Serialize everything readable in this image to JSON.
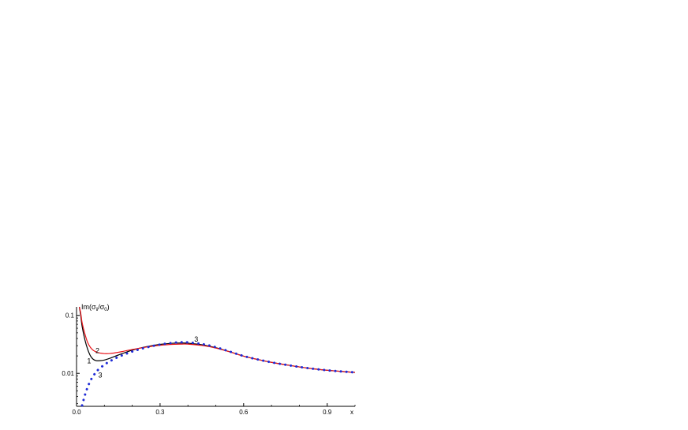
{
  "chart_data": {
    "type": "line",
    "title": "",
    "xlabel": "x",
    "ylabel": {
      "base": "Im(σ",
      "sub1": "ii",
      "mid": "/σ",
      "sub2": "0",
      "end": ")"
    },
    "x_scale": "linear",
    "y_scale": "log",
    "xlim": [
      0.0,
      1.0
    ],
    "ylim": [
      0.0027,
      0.14
    ],
    "x_ticks": [
      {
        "value": 0.0,
        "label": "0.0"
      },
      {
        "value": 0.3,
        "label": "0.3"
      },
      {
        "value": 0.6,
        "label": "0.6"
      },
      {
        "value": 0.9,
        "label": "0.9"
      }
    ],
    "y_ticks": [
      {
        "value": 0.1,
        "label": "0.1"
      },
      {
        "value": 0.01,
        "label": "0.01"
      }
    ],
    "grid": false,
    "legend": "none",
    "series": [
      {
        "id": "1",
        "style": "solid",
        "color": "#000000",
        "x": [
          0.01,
          0.015,
          0.02,
          0.03,
          0.04,
          0.05,
          0.06,
          0.07,
          0.08,
          0.1,
          0.12,
          0.15,
          0.2,
          0.25,
          0.3,
          0.35,
          0.38,
          0.4,
          0.45,
          0.5,
          0.55,
          0.6,
          0.65,
          0.7,
          0.75,
          0.8,
          0.85,
          0.9,
          0.95,
          1.0
        ],
        "y": [
          0.14,
          0.1,
          0.065,
          0.038,
          0.026,
          0.02,
          0.0175,
          0.0166,
          0.0165,
          0.017,
          0.0182,
          0.0207,
          0.0251,
          0.0288,
          0.0316,
          0.0332,
          0.0334,
          0.0331,
          0.0311,
          0.0277,
          0.0236,
          0.0198,
          0.0174,
          0.0155,
          0.0141,
          0.0129,
          0.012,
          0.0113,
          0.0108,
          0.0104
        ]
      },
      {
        "id": "2",
        "style": "solid",
        "color": "#e8141a",
        "x": [
          0.01,
          0.015,
          0.02,
          0.03,
          0.04,
          0.05,
          0.06,
          0.07,
          0.08,
          0.1,
          0.12,
          0.15,
          0.2,
          0.25,
          0.3,
          0.35,
          0.38,
          0.4,
          0.45,
          0.5,
          0.55,
          0.6,
          0.65,
          0.7,
          0.75,
          0.8,
          0.85,
          0.9,
          0.95,
          1.0
        ],
        "y": [
          0.14,
          0.11,
          0.075,
          0.048,
          0.034,
          0.028,
          0.025,
          0.0235,
          0.0226,
          0.0219,
          0.022,
          0.0231,
          0.0258,
          0.0284,
          0.0305,
          0.0317,
          0.032,
          0.0319,
          0.0303,
          0.0273,
          0.0235,
          0.0198,
          0.0174,
          0.0155,
          0.0141,
          0.0129,
          0.012,
          0.0113,
          0.0108,
          0.0104
        ]
      },
      {
        "id": "3",
        "style": "dotted",
        "color": "#1f2bd6",
        "x": [
          0.02,
          0.03,
          0.04,
          0.05,
          0.06,
          0.07,
          0.08,
          0.1,
          0.12,
          0.15,
          0.2,
          0.25,
          0.3,
          0.35,
          0.38,
          0.4,
          0.45,
          0.5,
          0.55,
          0.6,
          0.65,
          0.7,
          0.75,
          0.8,
          0.85,
          0.9,
          0.95,
          1.0
        ],
        "y": [
          0.0028,
          0.0042,
          0.0058,
          0.0075,
          0.009,
          0.0105,
          0.0118,
          0.0141,
          0.0162,
          0.0192,
          0.0238,
          0.0279,
          0.0314,
          0.0338,
          0.0344,
          0.0342,
          0.0321,
          0.0283,
          0.0238,
          0.0199,
          0.0174,
          0.0155,
          0.0141,
          0.0129,
          0.012,
          0.0113,
          0.0108,
          0.0104
        ]
      }
    ],
    "annotations": [
      {
        "text": "1",
        "x": 0.045,
        "y": 0.0148
      },
      {
        "text": "2",
        "x": 0.075,
        "y": 0.0225
      },
      {
        "text": "3",
        "x": 0.085,
        "y": 0.0085
      },
      {
        "text": "3",
        "x": 0.43,
        "y": 0.0355
      }
    ]
  }
}
